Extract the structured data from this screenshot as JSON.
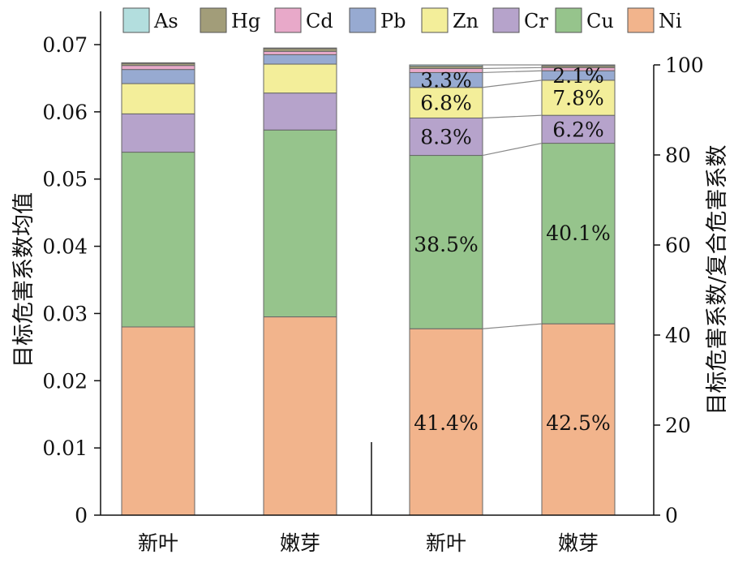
{
  "chart_data": {
    "type": "bar",
    "stacked": true,
    "left_axis": {
      "label": "目标危害系数均值",
      "ylim": [
        0,
        0.07
      ],
      "ticks": [
        "0",
        "0.01",
        "0.02",
        "0.03",
        "0.04",
        "0.05",
        "0.06",
        "0.07"
      ]
    },
    "right_axis": {
      "label": "目标危害系数/复合危害系数",
      "ylim": [
        0,
        100
      ],
      "ticks": [
        "0",
        "20",
        "40",
        "60",
        "80",
        "100"
      ]
    },
    "legend": {
      "placement": "top",
      "items": [
        "As",
        "Hg",
        "Cd",
        "Pb",
        "Zn",
        "Cr",
        "Cu",
        "Ni"
      ]
    },
    "colors": {
      "As": "#b3dede",
      "Hg": "#a29d79",
      "Cd": "#e8a9c9",
      "Pb": "#97aad1",
      "Zn": "#f3ee9a",
      "Cr": "#b6a3cb",
      "Cu": "#96c48c",
      "Ni": "#f2b48c"
    },
    "categories": [
      "新叶",
      "嫩芽",
      "新叶",
      "嫩芽"
    ],
    "left_groups": {
      "axis": "left",
      "categories": [
        "新叶",
        "嫩芽"
      ],
      "series": [
        {
          "name": "Ni",
          "values": [
            0.028,
            0.0295
          ]
        },
        {
          "name": "Cu",
          "values": [
            0.026,
            0.0278
          ]
        },
        {
          "name": "Cr",
          "values": [
            0.0057,
            0.0055
          ]
        },
        {
          "name": "Zn",
          "values": [
            0.0045,
            0.0043
          ]
        },
        {
          "name": "Pb",
          "values": [
            0.0021,
            0.0014
          ]
        },
        {
          "name": "Cd",
          "values": [
            0.0006,
            0.0005
          ]
        },
        {
          "name": "Hg",
          "values": [
            0.0003,
            0.0004
          ]
        },
        {
          "name": "As",
          "values": [
            0.0001,
            0.0001
          ]
        }
      ]
    },
    "right_groups": {
      "axis": "right",
      "categories": [
        "新叶",
        "嫩芽"
      ],
      "series": [
        {
          "name": "Ni",
          "values": [
            41.4,
            42.5
          ],
          "labels": [
            "41.4%",
            "42.5%"
          ]
        },
        {
          "name": "Cu",
          "values": [
            38.5,
            40.1
          ],
          "labels": [
            "38.5%",
            "40.1%"
          ]
        },
        {
          "name": "Cr",
          "values": [
            8.3,
            6.2
          ],
          "labels": [
            "8.3%",
            "6.2%"
          ]
        },
        {
          "name": "Zn",
          "values": [
            6.8,
            7.8
          ],
          "labels": [
            "6.8%",
            "7.8%"
          ]
        },
        {
          "name": "Pb",
          "values": [
            3.3,
            2.1
          ],
          "labels": [
            "3.3%",
            "2.1%"
          ]
        },
        {
          "name": "Cd",
          "values": [
            0.9,
            0.7
          ],
          "labels": [
            "",
            ""
          ]
        },
        {
          "name": "Hg",
          "values": [
            0.5,
            0.4
          ],
          "labels": [
            "",
            ""
          ]
        },
        {
          "name": "As",
          "values": [
            0.3,
            0.2
          ],
          "labels": [
            "",
            ""
          ]
        }
      ]
    }
  }
}
